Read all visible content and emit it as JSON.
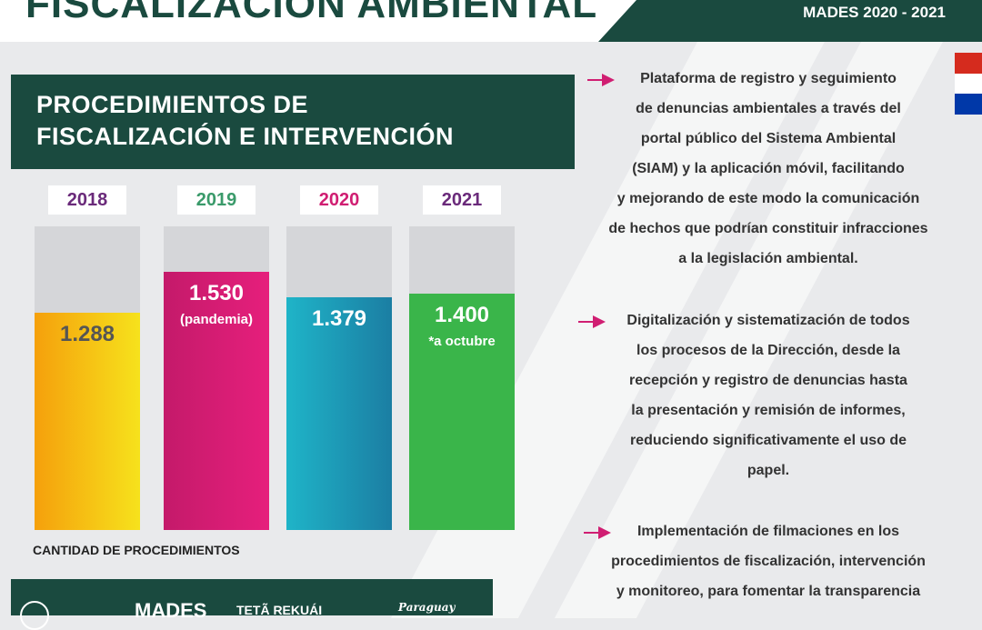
{
  "header": {
    "title": "FISCALIZACIÓN AMBIENTAL",
    "period": "MADES 2020 - 2021"
  },
  "section": {
    "title_line1": "PROCEDIMIENTOS DE",
    "title_line2": "FISCALIZACIÓN E INTERVENCIÓN"
  },
  "chart_data": {
    "type": "bar",
    "categories": [
      "2018",
      "2019",
      "2020",
      "2021"
    ],
    "values": [
      1288,
      1530,
      1379,
      1400
    ],
    "value_labels": [
      "1.288",
      "1.530",
      "1.379",
      "1.400"
    ],
    "notes": [
      "",
      "(pandemia)",
      "",
      "*a octubre"
    ],
    "xlabel": "CANTIDAD DE PROCEDIMIENTOS",
    "ylim": [
      0,
      1800
    ],
    "year_colors": [
      "#6a2a7a",
      "#3a9a6a",
      "#d01e72",
      "#6a2a7a"
    ],
    "bar_colors": [
      [
        "#f5a00c",
        "#f6e21c"
      ],
      [
        "#c41a6a",
        "#e61f7c"
      ],
      [
        "#1fb4c8",
        "#1b7ea3"
      ],
      [
        "#3ab54a",
        "#3ab54a"
      ]
    ],
    "value_colors": [
      "#555555",
      "#ffffff",
      "#ffffff",
      "#ffffff"
    ],
    "grid": false
  },
  "paragraphs": [
    {
      "lines": [
        "Plataforma de registro y seguimiento",
        "de denuncias ambientales a través del",
        "portal público del Sistema Ambiental",
        "(SIAM) y la aplicación móvil, facilitando",
        "y mejorando de este modo la comunicación",
        "de hechos que podrían constituir infracciones",
        "a la legislación ambiental."
      ]
    },
    {
      "lines": [
        "Digitalización y sistematización de todos",
        "los procesos de la Dirección, desde la",
        "recepción y registro de denuncias hasta",
        "la presentación y remisión de informes,",
        "reduciendo significativamente el uso de",
        "papel."
      ]
    },
    {
      "lines": [
        "Implementación de filmaciones en los",
        "procedimientos de fiscalización, intervención",
        "y monitoreo, para fomentar la transparencia"
      ]
    }
  ],
  "footer": {
    "logo_mades": "MADES",
    "logo_teta": "TETÃ REKUÁI",
    "logo_paraguay": "Paraguay"
  },
  "colors": {
    "brand_green": "#1a4a3f",
    "arrow": "#d01e72",
    "flag": [
      "#d52b1e",
      "#ffffff",
      "#0038a8"
    ]
  }
}
